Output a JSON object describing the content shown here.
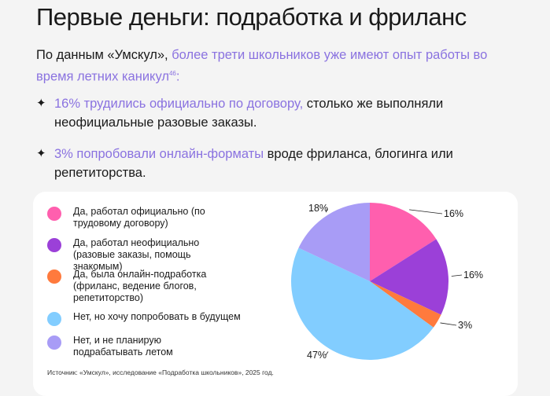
{
  "title": "Первые деньги: подработка и фриланс",
  "intro": {
    "plain": "По данным «Умскул», ",
    "accent": "более трети школьников уже имеют опыт работы во время летних каникул",
    "sup": "46",
    "end": ":"
  },
  "bullets": [
    {
      "accent": "16% трудились официально по договору,",
      "rest": " столько же выполняли неофициальные разовые заказы."
    },
    {
      "accent": "3% попробовали онлайн-форматы",
      "rest": " вроде фриланса, блогинга или репетиторства."
    }
  ],
  "source": "Источник: «Умскул», исследование «Подработка школьников», 2025 год.",
  "chart_data": {
    "type": "pie",
    "categories": [
      "Да, работал официально (по трудовому договору)",
      "Да, работал неофициально (разовые заказы, помощь знакомым)",
      "Да, была онлайн-подработка (фриланс, ведение блогов, репетиторство)",
      "Нет, но хочу попробовать в будущем",
      "Нет, и не планирую подрабатывать летом"
    ],
    "values": [
      16,
      16,
      3,
      47,
      18
    ],
    "labels": [
      "16%",
      "16%",
      "3%",
      "47%",
      "18%"
    ],
    "colors": [
      "#ff5fae",
      "#9b40d8",
      "#ff7a3d",
      "#82cdff",
      "#a89cf6"
    ],
    "legend": "left"
  }
}
